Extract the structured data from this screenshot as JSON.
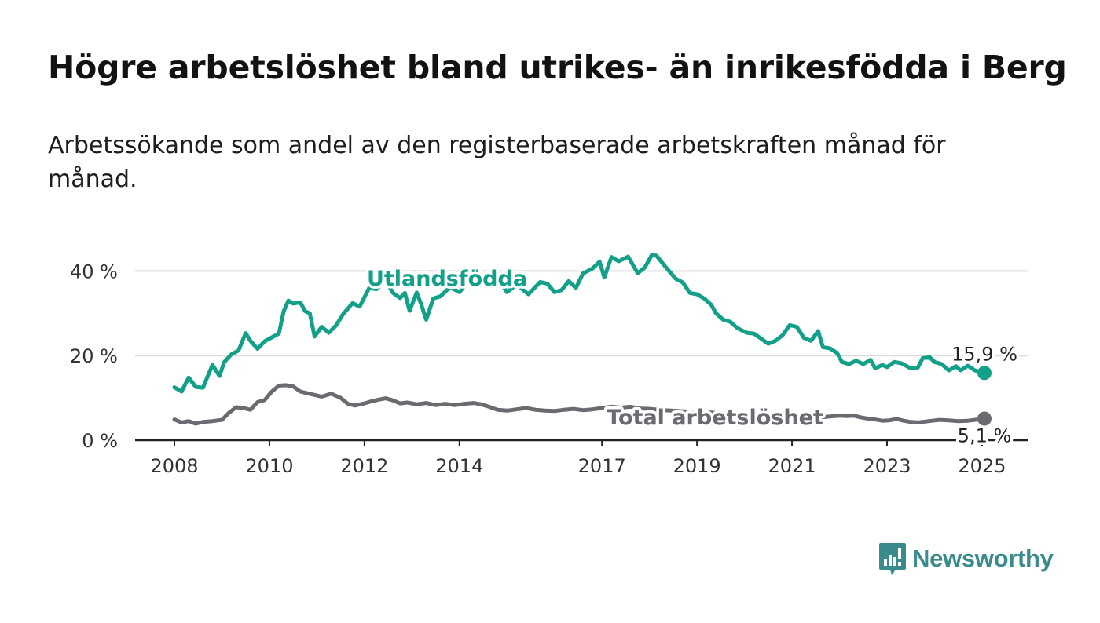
{
  "title": "Högre arbetslöshet bland utrikes- än inrikesfödda i Berg",
  "subtitle": "Arbetssökande som andel av den registerbaserade arbetskraften månad för månad.",
  "logo": {
    "text": "Newsworthy",
    "icon": "bar-chart-speech-icon",
    "color": "#3a8c8c"
  },
  "chart_data": {
    "type": "line",
    "ylim": [
      0,
      50
    ],
    "yticks": [
      0,
      20,
      40
    ],
    "ytick_labels": [
      "0 %",
      "20 %",
      "40 %"
    ],
    "xlim": [
      2008.0,
      2025.1
    ],
    "xticks": [
      2008,
      2010,
      2012,
      2014,
      2017,
      2019,
      2021,
      2023,
      2025
    ],
    "xtick_labels": [
      "2008",
      "2010",
      "2012",
      "2014",
      "2017",
      "2019",
      "2021",
      "2023",
      "2025"
    ],
    "grid": true,
    "series": [
      {
        "name": "Utlandsfödda",
        "color": "#12a089",
        "end_label": "15,9 %",
        "points": [
          [
            2008.0,
            12.5
          ],
          [
            2008.15,
            11.5
          ],
          [
            2008.3,
            14.8
          ],
          [
            2008.45,
            12.6
          ],
          [
            2008.6,
            12.4
          ],
          [
            2008.8,
            17.8
          ],
          [
            2008.95,
            15.2
          ],
          [
            2009.05,
            18.5
          ],
          [
            2009.2,
            20.3
          ],
          [
            2009.35,
            21.2
          ],
          [
            2009.5,
            25.3
          ],
          [
            2009.6,
            23.5
          ],
          [
            2009.75,
            21.6
          ],
          [
            2009.9,
            23.4
          ],
          [
            2010.05,
            24.3
          ],
          [
            2010.2,
            25.2
          ],
          [
            2010.3,
            30.5
          ],
          [
            2010.4,
            33.0
          ],
          [
            2010.5,
            32.3
          ],
          [
            2010.65,
            32.6
          ],
          [
            2010.75,
            30.5
          ],
          [
            2010.85,
            30.0
          ],
          [
            2010.95,
            24.5
          ],
          [
            2011.1,
            26.8
          ],
          [
            2011.25,
            25.4
          ],
          [
            2011.4,
            27.1
          ],
          [
            2011.55,
            29.8
          ],
          [
            2011.75,
            32.4
          ],
          [
            2011.9,
            31.6
          ],
          [
            2012.1,
            36.0
          ],
          [
            2012.25,
            35.7
          ],
          [
            2012.45,
            37.8
          ],
          [
            2012.6,
            34.8
          ],
          [
            2012.75,
            33.6
          ],
          [
            2012.85,
            34.8
          ],
          [
            2012.95,
            30.6
          ],
          [
            2013.1,
            34.9
          ],
          [
            2013.2,
            32.0
          ],
          [
            2013.3,
            28.5
          ],
          [
            2013.45,
            33.5
          ],
          [
            2013.6,
            34.0
          ],
          [
            2013.8,
            36.2
          ],
          [
            2014.0,
            35.0
          ],
          [
            2014.2,
            37.8
          ],
          [
            2014.5,
            38.3
          ],
          [
            2014.8,
            38.5
          ],
          [
            2015.0,
            35.0
          ],
          [
            2015.2,
            36.8
          ],
          [
            2015.45,
            34.5
          ],
          [
            2015.7,
            37.4
          ],
          [
            2015.85,
            37.0
          ],
          [
            2016.0,
            35.0
          ],
          [
            2016.15,
            35.5
          ],
          [
            2016.3,
            37.6
          ],
          [
            2016.45,
            36.0
          ],
          [
            2016.6,
            39.4
          ],
          [
            2016.8,
            40.6
          ],
          [
            2016.95,
            42.2
          ],
          [
            2017.05,
            38.5
          ],
          [
            2017.2,
            43.3
          ],
          [
            2017.35,
            42.3
          ],
          [
            2017.55,
            43.4
          ],
          [
            2017.75,
            39.5
          ],
          [
            2017.9,
            40.8
          ],
          [
            2018.05,
            43.8
          ],
          [
            2018.15,
            43.6
          ],
          [
            2018.3,
            41.5
          ],
          [
            2018.45,
            39.5
          ],
          [
            2018.55,
            38.2
          ],
          [
            2018.7,
            37.3
          ],
          [
            2018.85,
            34.8
          ],
          [
            2019.0,
            34.5
          ],
          [
            2019.15,
            33.5
          ],
          [
            2019.3,
            32.0
          ],
          [
            2019.4,
            30.0
          ],
          [
            2019.55,
            28.5
          ],
          [
            2019.7,
            28.0
          ],
          [
            2019.85,
            26.5
          ],
          [
            2020.05,
            25.4
          ],
          [
            2020.2,
            25.2
          ],
          [
            2020.35,
            24.0
          ],
          [
            2020.5,
            22.8
          ],
          [
            2020.65,
            23.5
          ],
          [
            2020.8,
            24.8
          ],
          [
            2020.95,
            27.2
          ],
          [
            2021.1,
            26.8
          ],
          [
            2021.25,
            24.2
          ],
          [
            2021.4,
            23.5
          ],
          [
            2021.55,
            25.8
          ],
          [
            2021.65,
            22.0
          ],
          [
            2021.8,
            21.7
          ],
          [
            2021.95,
            20.6
          ],
          [
            2022.05,
            18.5
          ],
          [
            2022.2,
            18.0
          ],
          [
            2022.35,
            18.8
          ],
          [
            2022.5,
            18.0
          ],
          [
            2022.65,
            19.0
          ],
          [
            2022.75,
            17.0
          ],
          [
            2022.9,
            17.8
          ],
          [
            2023.0,
            17.3
          ],
          [
            2023.15,
            18.5
          ],
          [
            2023.3,
            18.2
          ],
          [
            2023.5,
            17.0
          ],
          [
            2023.65,
            17.2
          ],
          [
            2023.75,
            19.4
          ],
          [
            2023.9,
            19.6
          ],
          [
            2024.0,
            18.5
          ],
          [
            2024.15,
            18.0
          ],
          [
            2024.3,
            16.5
          ],
          [
            2024.45,
            17.5
          ],
          [
            2024.55,
            16.5
          ],
          [
            2024.7,
            17.6
          ],
          [
            2024.85,
            16.5
          ],
          [
            2024.95,
            16.2
          ],
          [
            2025.05,
            15.9
          ]
        ]
      },
      {
        "name": "Total arbetslöshet",
        "color": "#6b6a70",
        "end_label": "5,1 %",
        "points": [
          [
            2008.0,
            4.9
          ],
          [
            2008.15,
            4.2
          ],
          [
            2008.3,
            4.5
          ],
          [
            2008.45,
            3.9
          ],
          [
            2008.6,
            4.3
          ],
          [
            2008.8,
            4.5
          ],
          [
            2009.0,
            4.8
          ],
          [
            2009.15,
            6.5
          ],
          [
            2009.3,
            7.8
          ],
          [
            2009.45,
            7.6
          ],
          [
            2009.6,
            7.2
          ],
          [
            2009.75,
            9.0
          ],
          [
            2009.9,
            9.5
          ],
          [
            2010.05,
            11.5
          ],
          [
            2010.2,
            12.9
          ],
          [
            2010.35,
            13.0
          ],
          [
            2010.5,
            12.7
          ],
          [
            2010.65,
            11.5
          ],
          [
            2010.8,
            11.1
          ],
          [
            2010.95,
            10.7
          ],
          [
            2011.1,
            10.3
          ],
          [
            2011.3,
            11.0
          ],
          [
            2011.5,
            10.0
          ],
          [
            2011.65,
            8.6
          ],
          [
            2011.8,
            8.2
          ],
          [
            2012.0,
            8.7
          ],
          [
            2012.15,
            9.2
          ],
          [
            2012.3,
            9.6
          ],
          [
            2012.45,
            9.9
          ],
          [
            2012.6,
            9.4
          ],
          [
            2012.75,
            8.7
          ],
          [
            2012.9,
            8.9
          ],
          [
            2013.1,
            8.5
          ],
          [
            2013.3,
            8.8
          ],
          [
            2013.5,
            8.3
          ],
          [
            2013.7,
            8.6
          ],
          [
            2013.9,
            8.3
          ],
          [
            2014.1,
            8.6
          ],
          [
            2014.3,
            8.8
          ],
          [
            2014.45,
            8.5
          ],
          [
            2014.6,
            8.0
          ],
          [
            2014.8,
            7.2
          ],
          [
            2015.0,
            7.0
          ],
          [
            2015.2,
            7.3
          ],
          [
            2015.4,
            7.6
          ],
          [
            2015.6,
            7.2
          ],
          [
            2015.8,
            7.0
          ],
          [
            2016.0,
            6.9
          ],
          [
            2016.2,
            7.2
          ],
          [
            2016.4,
            7.4
          ],
          [
            2016.6,
            7.1
          ],
          [
            2016.8,
            7.3
          ],
          [
            2017.0,
            7.6
          ],
          [
            2017.2,
            7.9
          ],
          [
            2017.4,
            7.7
          ],
          [
            2017.6,
            7.9
          ],
          [
            2017.8,
            7.5
          ],
          [
            2018.0,
            7.4
          ],
          [
            2018.3,
            7.1
          ],
          [
            2018.6,
            6.9
          ],
          [
            2018.9,
            6.7
          ],
          [
            2019.2,
            6.6
          ],
          [
            2019.5,
            6.4
          ],
          [
            2019.8,
            6.2
          ],
          [
            2020.1,
            6.1
          ],
          [
            2020.4,
            5.9
          ],
          [
            2020.7,
            5.7
          ],
          [
            2021.0,
            5.6
          ],
          [
            2021.3,
            5.5
          ],
          [
            2021.6,
            5.4
          ],
          [
            2021.8,
            5.6
          ],
          [
            2022.0,
            5.8
          ],
          [
            2022.15,
            5.7
          ],
          [
            2022.3,
            5.8
          ],
          [
            2022.45,
            5.4
          ],
          [
            2022.6,
            5.1
          ],
          [
            2022.75,
            4.9
          ],
          [
            2022.9,
            4.6
          ],
          [
            2023.05,
            4.7
          ],
          [
            2023.2,
            5.0
          ],
          [
            2023.35,
            4.6
          ],
          [
            2023.5,
            4.3
          ],
          [
            2023.65,
            4.2
          ],
          [
            2023.8,
            4.4
          ],
          [
            2023.95,
            4.6
          ],
          [
            2024.1,
            4.8
          ],
          [
            2024.3,
            4.7
          ],
          [
            2024.5,
            4.5
          ],
          [
            2024.7,
            4.6
          ],
          [
            2024.85,
            4.8
          ],
          [
            2025.05,
            5.1
          ]
        ]
      }
    ]
  }
}
